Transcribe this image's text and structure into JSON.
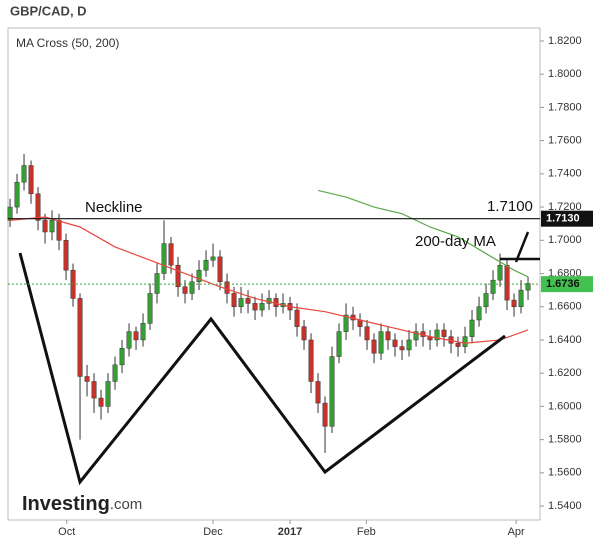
{
  "chart_data": {
    "type": "candlestick",
    "title": "GBP/CAD, D",
    "indicator": "MA Cross (50, 200)",
    "up_color": "#35a135",
    "down_color": "#c8322b",
    "wick_color": "#333333",
    "candles": {
      "open": [
        1.712,
        1.72,
        1.735,
        1.745,
        1.728,
        1.712,
        1.705,
        1.712,
        1.7,
        1.682,
        1.665,
        1.618,
        1.615,
        1.605,
        1.6,
        1.615,
        1.625,
        1.635,
        1.645,
        1.64,
        1.65,
        1.668,
        1.68,
        1.698,
        1.685,
        1.672,
        1.668,
        1.675,
        1.682,
        1.688,
        1.69,
        1.675,
        1.668,
        1.66,
        1.665,
        1.662,
        1.658,
        1.662,
        1.665,
        1.66,
        1.662,
        1.658,
        1.648,
        1.64,
        1.615,
        1.602,
        1.588,
        1.63,
        1.645,
        1.655,
        1.652,
        1.648,
        1.64,
        1.632,
        1.645,
        1.64,
        1.636,
        1.634,
        1.64,
        1.645,
        1.642,
        1.64,
        1.646,
        1.642,
        1.638,
        1.636,
        1.642,
        1.652,
        1.66,
        1.668,
        1.676,
        1.685,
        1.664,
        1.66,
        1.67
      ],
      "high": [
        1.725,
        1.74,
        1.752,
        1.748,
        1.732,
        1.716,
        1.718,
        1.716,
        1.704,
        1.686,
        1.668,
        1.625,
        1.62,
        1.61,
        1.62,
        1.63,
        1.64,
        1.65,
        1.648,
        1.656,
        1.674,
        1.686,
        1.712,
        1.702,
        1.69,
        1.676,
        1.68,
        1.688,
        1.694,
        1.698,
        1.694,
        1.68,
        1.672,
        1.672,
        1.67,
        1.666,
        1.668,
        1.67,
        1.668,
        1.668,
        1.666,
        1.662,
        1.652,
        1.644,
        1.62,
        1.606,
        1.636,
        1.65,
        1.662,
        1.66,
        1.656,
        1.652,
        1.644,
        1.65,
        1.648,
        1.644,
        1.64,
        1.646,
        1.65,
        1.65,
        1.646,
        1.65,
        1.65,
        1.646,
        1.642,
        1.648,
        1.658,
        1.666,
        1.674,
        1.682,
        1.692,
        1.688,
        1.668,
        1.676,
        1.678
      ],
      "low": [
        1.708,
        1.716,
        1.73,
        1.722,
        1.706,
        1.698,
        1.7,
        1.694,
        1.676,
        1.66,
        1.58,
        1.606,
        1.596,
        1.592,
        1.596,
        1.61,
        1.62,
        1.63,
        1.634,
        1.636,
        1.646,
        1.662,
        1.676,
        1.68,
        1.666,
        1.662,
        1.664,
        1.67,
        1.678,
        1.684,
        1.67,
        1.662,
        1.654,
        1.656,
        1.656,
        1.652,
        1.654,
        1.658,
        1.654,
        1.656,
        1.652,
        1.642,
        1.634,
        1.608,
        1.596,
        1.572,
        1.584,
        1.626,
        1.64,
        1.646,
        1.642,
        1.634,
        1.626,
        1.628,
        1.634,
        1.63,
        1.628,
        1.63,
        1.636,
        1.636,
        1.634,
        1.636,
        1.636,
        1.632,
        1.63,
        1.632,
        1.638,
        1.648,
        1.656,
        1.664,
        1.672,
        1.658,
        1.654,
        1.656,
        1.664
      ],
      "close": [
        1.72,
        1.735,
        1.745,
        1.728,
        1.712,
        1.705,
        1.712,
        1.7,
        1.682,
        1.665,
        1.618,
        1.615,
        1.605,
        1.6,
        1.615,
        1.625,
        1.635,
        1.645,
        1.64,
        1.65,
        1.668,
        1.68,
        1.698,
        1.685,
        1.672,
        1.668,
        1.675,
        1.682,
        1.688,
        1.69,
        1.675,
        1.668,
        1.66,
        1.665,
        1.662,
        1.658,
        1.662,
        1.665,
        1.66,
        1.662,
        1.658,
        1.648,
        1.64,
        1.615,
        1.602,
        1.588,
        1.63,
        1.645,
        1.655,
        1.652,
        1.648,
        1.64,
        1.632,
        1.645,
        1.64,
        1.636,
        1.634,
        1.64,
        1.645,
        1.642,
        1.64,
        1.646,
        1.642,
        1.638,
        1.636,
        1.642,
        1.652,
        1.66,
        1.668,
        1.676,
        1.685,
        1.664,
        1.66,
        1.67,
        1.674
      ]
    },
    "lines": [
      {
        "color": "#e8463c",
        "x": [
          0,
          5,
          10,
          15,
          20,
          25,
          30,
          35,
          40,
          45,
          50,
          55,
          60,
          65,
          70,
          74
        ],
        "values": [
          1.712,
          1.714,
          1.708,
          1.696,
          1.688,
          1.68,
          1.672,
          1.665,
          1.66,
          1.657,
          1.652,
          1.647,
          1.642,
          1.638,
          1.64,
          1.646
        ]
      },
      {
        "color": "#5aaa4a",
        "x": [
          44,
          48,
          52,
          56,
          60,
          64,
          68,
          72,
          74
        ],
        "values": [
          1.73,
          1.726,
          1.72,
          1.716,
          1.708,
          1.702,
          1.692,
          1.682,
          1.678
        ]
      }
    ],
    "neckline": {
      "value": 1.713,
      "label": "1.7130"
    },
    "last_price": {
      "value": 1.6736,
      "label": "1.6736"
    },
    "annotations": [
      "Neckline",
      "1.7100",
      "200-day MA"
    ],
    "xlim": [
      -0.29,
      75.71
    ],
    "ylim": [
      1.5316,
      1.8278
    ],
    "xticks": [
      {
        "value": 8.1,
        "label": "Oct"
      },
      {
        "value": 29,
        "label": "Dec"
      },
      {
        "value": 40,
        "label": "2017"
      },
      {
        "value": 50.9,
        "label": "Feb"
      },
      {
        "value": 72.3,
        "label": "Apr"
      }
    ],
    "yticks": [
      {
        "value": 1.54,
        "label": "1.5400"
      },
      {
        "value": 1.56,
        "label": "1.5600"
      },
      {
        "value": 1.58,
        "label": "1.5800"
      },
      {
        "value": 1.6,
        "label": "1.6000"
      },
      {
        "value": 1.62,
        "label": "1.6200"
      },
      {
        "value": 1.64,
        "label": "1.6400"
      },
      {
        "value": 1.66,
        "label": "1.6600"
      },
      {
        "value": 1.68,
        "label": "1.6800"
      },
      {
        "value": 1.7,
        "label": "1.7000"
      },
      {
        "value": 1.72,
        "label": "1.7200"
      },
      {
        "value": 1.74,
        "label": "1.7400"
      },
      {
        "value": 1.76,
        "label": "1.7600"
      },
      {
        "value": 1.78,
        "label": "1.7800"
      },
      {
        "value": 1.8,
        "label": "1.8000"
      },
      {
        "value": 1.82,
        "label": "1.8200"
      }
    ],
    "logo": [
      "Investing",
      ".com"
    ]
  }
}
